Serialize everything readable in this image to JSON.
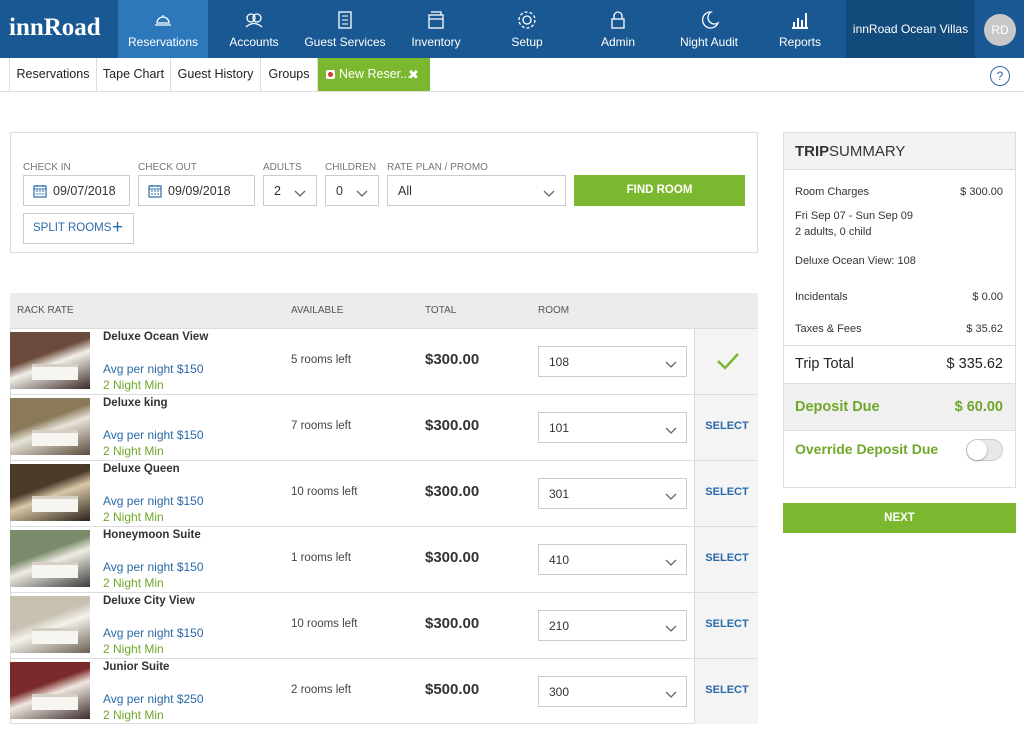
{
  "nav": {
    "logo": "innRoad",
    "items": [
      "Reservations",
      "Accounts",
      "Guest Services",
      "Inventory",
      "Setup",
      "Admin",
      "Night Audit",
      "Reports"
    ],
    "active": 0,
    "property": "innRoad Ocean Villas",
    "avatar": "RD"
  },
  "tabs": {
    "items": [
      "Reservations",
      "Tape Chart",
      "Guest History",
      "Groups",
      "New Reser..."
    ],
    "active": 4,
    "help": "?"
  },
  "search": {
    "fields": [
      {
        "label": "CHECK IN",
        "value": "09/07/2018"
      },
      {
        "label": "CHECK OUT",
        "value": "09/09/2018"
      },
      {
        "label": "ADULTS",
        "value": "2"
      },
      {
        "label": "CHILDREN",
        "value": "0"
      },
      {
        "label": "RATE PLAN / PROMO",
        "value": "All"
      }
    ],
    "find_button": "FIND ROOM",
    "split_button": "SPLIT ROOMS"
  },
  "rooms": {
    "headers": [
      "RACK RATE",
      "AVAILABLE",
      "TOTAL",
      "ROOM"
    ],
    "rows": [
      {
        "name": "Deluxe Ocean View",
        "avg": "Avg per night $150",
        "min": "2 Night Min",
        "available": "5 rooms left",
        "total": "$300.00",
        "room": "108",
        "selected": true
      },
      {
        "name": "Deluxe king",
        "avg": "Avg per night $150",
        "min": "2 Night Min",
        "available": "7 rooms left",
        "total": "$300.00",
        "room": "101",
        "action": "SELECT"
      },
      {
        "name": "Deluxe Queen",
        "avg": "Avg per night $150",
        "min": "2 Night Min",
        "available": "10 rooms left",
        "total": "$300.00",
        "room": "301",
        "action": "SELECT"
      },
      {
        "name": "Honeymoon Suite",
        "avg": "Avg per night $150",
        "min": "2 Night Min",
        "available": "1 rooms left",
        "total": "$300.00",
        "room": "410",
        "action": "SELECT"
      },
      {
        "name": "Deluxe City View",
        "avg": "Avg per night $150",
        "min": "2 Night Min",
        "available": "10 rooms left",
        "total": "$300.00",
        "room": "210",
        "action": "SELECT"
      },
      {
        "name": "Junior Suite",
        "avg": "Avg per night $250",
        "min": "2 Night Min",
        "available": "2 rooms left",
        "total": "$500.00",
        "room": "300",
        "action": "SELECT"
      }
    ]
  },
  "summary": {
    "title_bold": "TRIP",
    "title": "SUMMARY",
    "room_charges": {
      "label": "Room Charges",
      "value": "$ 300.00"
    },
    "dates": "Fri Sep 07 - Sun Sep 09",
    "guests": "2 adults, 0 child",
    "room": "Deluxe Ocean View: 108",
    "incidentals": {
      "label": "Incidentals",
      "value": "$ 0.00"
    },
    "taxes": {
      "label": "Taxes & Fees",
      "value": "$ 35.62"
    },
    "trip_total": {
      "label": "Trip Total",
      "value": "$ 335.62"
    },
    "deposit_due": {
      "label": "Deposit Due",
      "value": "$ 60.00"
    },
    "override": "Override Deposit Due",
    "next": "NEXT"
  }
}
